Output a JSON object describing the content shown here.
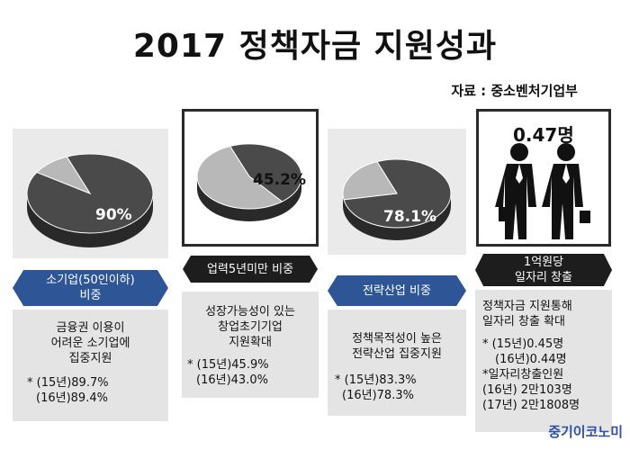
{
  "title": "2017 정책자금 지원성과",
  "source": "자료 : 중소벤처기업부",
  "logo": "중기이코노미",
  "chart_data": [
    {
      "type": "pie",
      "percent_label": "90%",
      "slices": [
        {
          "label": "소기업(50인이하)",
          "value": 90,
          "color": "#4a4a4a"
        },
        {
          "label": "",
          "value": 10,
          "color": "#b8b8b8"
        }
      ]
    },
    {
      "type": "pie",
      "percent_label": "45.2%",
      "slices": [
        {
          "label": "업력5년미만",
          "value": 45.2,
          "color": "#4a4a4a"
        },
        {
          "label": "",
          "value": 54.8,
          "color": "#b8b8b8"
        }
      ]
    },
    {
      "type": "pie",
      "percent_label": "78.1%",
      "slices": [
        {
          "label": "전략산업",
          "value": 78.1,
          "color": "#4a4a4a"
        },
        {
          "label": "",
          "value": 21.9,
          "color": "#b8b8b8"
        }
      ]
    }
  ],
  "jobs": {
    "value_label": "0.47명",
    "tag": [
      "1억원당",
      "일자리 창출"
    ],
    "icon": "business-people-icon"
  },
  "columns": [
    {
      "tag": [
        "소기업(50인이하)",
        "비중"
      ],
      "tag_style": "blue",
      "headline": [
        "금융권 이용이",
        "어려운 소기업에",
        "집중지원"
      ],
      "stats": [
        "* (15년)89.7%",
        "(16년)89.4%"
      ]
    },
    {
      "tag": [
        "업력5년미만 비중"
      ],
      "tag_style": "dark",
      "headline": [
        "성장가능성이 있는",
        "창업초기기업",
        "지원확대"
      ],
      "stats": [
        "* (15년)45.9%",
        "(16년)43.0%"
      ]
    },
    {
      "tag": [
        "전략산업 비중"
      ],
      "tag_style": "blue",
      "headline": [
        "정책목적성이 높은",
        "전략산업 집중지원"
      ],
      "stats": [
        "* (15년)83.3%",
        "(16년)78.3%"
      ]
    },
    {
      "headline": [
        "정책자금 지원통해",
        "일자리 창출 확대"
      ],
      "stats": [
        "* (15년)0.45명",
        "(16년)0.44명",
        "*일자리창출인원",
        "(16년) 2만103명",
        "(17년) 2만1808명"
      ]
    }
  ],
  "colors": {
    "accent_blue": "#2e5596",
    "dark_tag": "#1d1d1d",
    "panel_gray": "#eaeaea",
    "logo_blue": "#2f4fa6"
  }
}
